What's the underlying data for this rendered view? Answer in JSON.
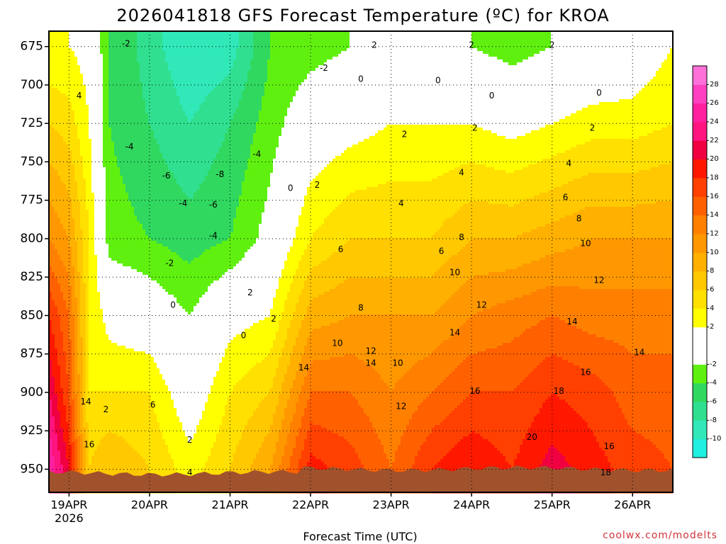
{
  "chart_data": {
    "type": "heatmap",
    "title": "2026041818 GFS Forecast Temperature (ºC) for KROA",
    "xlabel": "Forecast Time (UTC)",
    "ylabel": "",
    "credit": "coolwx.com/modelts",
    "x_range_hours": [
      0,
      186
    ],
    "y_range_hPa": [
      665,
      965
    ],
    "y_ticks": [
      675,
      700,
      725,
      750,
      775,
      800,
      825,
      850,
      875,
      900,
      925,
      950
    ],
    "x_ticks": [
      {
        "hour": 6,
        "label": "19APR",
        "sub": "2026"
      },
      {
        "hour": 30,
        "label": "20APR"
      },
      {
        "hour": 54,
        "label": "21APR"
      },
      {
        "hour": 78,
        "label": "22APR"
      },
      {
        "hour": 102,
        "label": "23APR"
      },
      {
        "hour": 126,
        "label": "24APR"
      },
      {
        "hour": 150,
        "label": "25APR"
      },
      {
        "hour": 174,
        "label": "26APR"
      }
    ],
    "colorbar": {
      "labels": [
        28,
        26,
        24,
        22,
        20,
        18,
        16,
        14,
        12,
        10,
        8,
        6,
        4,
        2,
        -2,
        -4,
        -6,
        -8,
        -10
      ],
      "bands": [
        {
          "min": -12,
          "max": -10,
          "color": "#20f0e0"
        },
        {
          "min": -10,
          "max": -8,
          "color": "#30e8b8"
        },
        {
          "min": -8,
          "max": -6,
          "color": "#30e090"
        },
        {
          "min": -6,
          "max": -4,
          "color": "#30d860"
        },
        {
          "min": -4,
          "max": -2,
          "color": "#60f010"
        },
        {
          "min": -2,
          "max": 2,
          "color": "#ffffff"
        },
        {
          "min": 2,
          "max": 4,
          "color": "#ffff00"
        },
        {
          "min": 4,
          "max": 6,
          "color": "#ffe000"
        },
        {
          "min": 6,
          "max": 8,
          "color": "#ffc800"
        },
        {
          "min": 8,
          "max": 10,
          "color": "#ffb000"
        },
        {
          "min": 10,
          "max": 12,
          "color": "#ff9800"
        },
        {
          "min": 12,
          "max": 14,
          "color": "#ff8000"
        },
        {
          "min": 14,
          "max": 16,
          "color": "#ff6000"
        },
        {
          "min": 16,
          "max": 18,
          "color": "#ff4000"
        },
        {
          "min": 18,
          "max": 20,
          "color": "#ff1800"
        },
        {
          "min": 20,
          "max": 22,
          "color": "#f00040"
        },
        {
          "min": 22,
          "max": 24,
          "color": "#ff1480"
        },
        {
          "min": 24,
          "max": 26,
          "color": "#ff20a0"
        },
        {
          "min": 26,
          "max": 28,
          "color": "#ff40c0"
        },
        {
          "min": 28,
          "max": 30,
          "color": "#ff70d8"
        }
      ]
    },
    "terrain_color": "#a0522d",
    "profiles": [
      {
        "hour": 0,
        "levels": [
          {
            "p": 675,
            "t": 2
          },
          {
            "p": 725,
            "t": 6
          },
          {
            "p": 800,
            "t": 12
          },
          {
            "p": 850,
            "t": 18
          },
          {
            "p": 900,
            "t": 22
          },
          {
            "p": 950,
            "t": 26
          }
        ]
      },
      {
        "hour": 6,
        "levels": [
          {
            "p": 675,
            "t": 2
          },
          {
            "p": 725,
            "t": 5
          },
          {
            "p": 800,
            "t": 10
          },
          {
            "p": 850,
            "t": 14
          },
          {
            "p": 900,
            "t": 16
          },
          {
            "p": 950,
            "t": 20
          }
        ]
      },
      {
        "hour": 12,
        "levels": [
          {
            "p": 675,
            "t": 1
          },
          {
            "p": 725,
            "t": 2
          },
          {
            "p": 800,
            "t": 4
          },
          {
            "p": 850,
            "t": 4
          },
          {
            "p": 900,
            "t": 4
          },
          {
            "p": 950,
            "t": 6
          }
        ]
      },
      {
        "hour": 18,
        "levels": [
          {
            "p": 675,
            "t": -4
          },
          {
            "p": 725,
            "t": -4
          },
          {
            "p": 800,
            "t": -3
          },
          {
            "p": 850,
            "t": 1
          },
          {
            "p": 900,
            "t": 4
          },
          {
            "p": 950,
            "t": 8
          }
        ]
      },
      {
        "hour": 30,
        "levels": [
          {
            "p": 675,
            "t": -7
          },
          {
            "p": 725,
            "t": -6
          },
          {
            "p": 800,
            "t": -4
          },
          {
            "p": 850,
            "t": 0
          },
          {
            "p": 900,
            "t": 4
          },
          {
            "p": 950,
            "t": 6
          }
        ]
      },
      {
        "hour": 42,
        "levels": [
          {
            "p": 675,
            "t": -10
          },
          {
            "p": 725,
            "t": -8
          },
          {
            "p": 800,
            "t": -5
          },
          {
            "p": 850,
            "t": -2
          },
          {
            "p": 900,
            "t": 0
          },
          {
            "p": 950,
            "t": 3
          }
        ]
      },
      {
        "hour": 54,
        "levels": [
          {
            "p": 675,
            "t": -9
          },
          {
            "p": 725,
            "t": -6
          },
          {
            "p": 800,
            "t": -4
          },
          {
            "p": 850,
            "t": 1
          },
          {
            "p": 900,
            "t": 4
          },
          {
            "p": 950,
            "t": 6
          }
        ]
      },
      {
        "hour": 66,
        "levels": [
          {
            "p": 675,
            "t": -4
          },
          {
            "p": 725,
            "t": -3
          },
          {
            "p": 800,
            "t": -1
          },
          {
            "p": 850,
            "t": 2
          },
          {
            "p": 900,
            "t": 6
          },
          {
            "p": 950,
            "t": 10
          }
        ]
      },
      {
        "hour": 78,
        "levels": [
          {
            "p": 675,
            "t": -3
          },
          {
            "p": 725,
            "t": 0
          },
          {
            "p": 800,
            "t": 4
          },
          {
            "p": 850,
            "t": 9
          },
          {
            "p": 900,
            "t": 14
          },
          {
            "p": 950,
            "t": 19
          }
        ]
      },
      {
        "hour": 90,
        "levels": [
          {
            "p": 675,
            "t": -2
          },
          {
            "p": 725,
            "t": 1
          },
          {
            "p": 800,
            "t": 6
          },
          {
            "p": 850,
            "t": 10
          },
          {
            "p": 900,
            "t": 14
          },
          {
            "p": 950,
            "t": 17
          }
        ]
      },
      {
        "hour": 102,
        "levels": [
          {
            "p": 675,
            "t": -1
          },
          {
            "p": 725,
            "t": 2
          },
          {
            "p": 800,
            "t": 6
          },
          {
            "p": 850,
            "t": 10
          },
          {
            "p": 900,
            "t": 12
          },
          {
            "p": 950,
            "t": 14
          }
        ]
      },
      {
        "hour": 114,
        "levels": [
          {
            "p": 675,
            "t": 0
          },
          {
            "p": 725,
            "t": 2
          },
          {
            "p": 800,
            "t": 6
          },
          {
            "p": 850,
            "t": 10
          },
          {
            "p": 900,
            "t": 14
          },
          {
            "p": 950,
            "t": 18
          }
        ]
      },
      {
        "hour": 126,
        "levels": [
          {
            "p": 675,
            "t": -2
          },
          {
            "p": 725,
            "t": 2
          },
          {
            "p": 800,
            "t": 8
          },
          {
            "p": 850,
            "t": 12
          },
          {
            "p": 900,
            "t": 16
          },
          {
            "p": 950,
            "t": 20
          }
        ]
      },
      {
        "hour": 138,
        "levels": [
          {
            "p": 675,
            "t": -3
          },
          {
            "p": 725,
            "t": 1
          },
          {
            "p": 800,
            "t": 8
          },
          {
            "p": 850,
            "t": 13
          },
          {
            "p": 900,
            "t": 16
          },
          {
            "p": 950,
            "t": 18
          }
        ]
      },
      {
        "hour": 150,
        "levels": [
          {
            "p": 675,
            "t": -2
          },
          {
            "p": 725,
            "t": 2
          },
          {
            "p": 800,
            "t": 9
          },
          {
            "p": 850,
            "t": 14
          },
          {
            "p": 900,
            "t": 18
          },
          {
            "p": 950,
            "t": 21
          }
        ]
      },
      {
        "hour": 162,
        "levels": [
          {
            "p": 675,
            "t": -1
          },
          {
            "p": 725,
            "t": 3
          },
          {
            "p": 800,
            "t": 10
          },
          {
            "p": 850,
            "t": 13
          },
          {
            "p": 900,
            "t": 17
          },
          {
            "p": 950,
            "t": 19
          }
        ]
      },
      {
        "hour": 174,
        "levels": [
          {
            "p": 675,
            "t": 0
          },
          {
            "p": 725,
            "t": 3
          },
          {
            "p": 800,
            "t": 10
          },
          {
            "p": 850,
            "t": 13
          },
          {
            "p": 900,
            "t": 15
          },
          {
            "p": 950,
            "t": 17
          }
        ]
      },
      {
        "hour": 186,
        "levels": [
          {
            "p": 675,
            "t": 2
          },
          {
            "p": 725,
            "t": 4
          },
          {
            "p": 800,
            "t": 10
          },
          {
            "p": 850,
            "t": 13
          },
          {
            "p": 900,
            "t": 15
          },
          {
            "p": 950,
            "t": 16
          }
        ]
      }
    ],
    "contour_labels": [
      {
        "text": "4",
        "hour": 9,
        "p": 707
      },
      {
        "text": "14",
        "hour": 11,
        "p": 906
      },
      {
        "text": "16",
        "hour": 12,
        "p": 934
      },
      {
        "text": "2",
        "hour": 17,
        "p": 911
      },
      {
        "text": "-2",
        "hour": 23,
        "p": 673
      },
      {
        "text": "-4",
        "hour": 24,
        "p": 740
      },
      {
        "text": "-6",
        "hour": 35,
        "p": 759
      },
      {
        "text": "-4",
        "hour": 40,
        "p": 777
      },
      {
        "text": "-2",
        "hour": 36,
        "p": 816
      },
      {
        "text": "0",
        "hour": 37,
        "p": 843
      },
      {
        "text": "6",
        "hour": 31,
        "p": 908
      },
      {
        "text": "2",
        "hour": 42,
        "p": 931
      },
      {
        "text": "4",
        "hour": 42,
        "p": 952
      },
      {
        "text": "-8",
        "hour": 51,
        "p": 758
      },
      {
        "text": "-6",
        "hour": 49,
        "p": 778
      },
      {
        "text": "-4",
        "hour": 49,
        "p": 798
      },
      {
        "text": "-4",
        "hour": 62,
        "p": 745
      },
      {
        "text": "2",
        "hour": 60,
        "p": 835
      },
      {
        "text": "0",
        "hour": 58,
        "p": 863
      },
      {
        "text": "2",
        "hour": 67,
        "p": 852
      },
      {
        "text": "0",
        "hour": 72,
        "p": 767
      },
      {
        "text": "2",
        "hour": 80,
        "p": 765
      },
      {
        "text": "-2",
        "hour": 82,
        "p": 689
      },
      {
        "text": "0",
        "hour": 93,
        "p": 696
      },
      {
        "text": "2",
        "hour": 97,
        "p": 674
      },
      {
        "text": "6",
        "hour": 87,
        "p": 807
      },
      {
        "text": "8",
        "hour": 93,
        "p": 845
      },
      {
        "text": "10",
        "hour": 86,
        "p": 868
      },
      {
        "text": "12",
        "hour": 96,
        "p": 873
      },
      {
        "text": "14",
        "hour": 76,
        "p": 884
      },
      {
        "text": "14",
        "hour": 96,
        "p": 881
      },
      {
        "text": "10",
        "hour": 104,
        "p": 881
      },
      {
        "text": "12",
        "hour": 105,
        "p": 909
      },
      {
        "text": "2",
        "hour": 106,
        "p": 732
      },
      {
        "text": "4",
        "hour": 105,
        "p": 777
      },
      {
        "text": "0",
        "hour": 116,
        "p": 697
      },
      {
        "text": "6",
        "hour": 117,
        "p": 808
      },
      {
        "text": "4",
        "hour": 123,
        "p": 757
      },
      {
        "text": "8",
        "hour": 123,
        "p": 799
      },
      {
        "text": "10",
        "hour": 121,
        "p": 822
      },
      {
        "text": "12",
        "hour": 129,
        "p": 843
      },
      {
        "text": "14",
        "hour": 121,
        "p": 861
      },
      {
        "text": "16",
        "hour": 127,
        "p": 899
      },
      {
        "text": "2",
        "hour": 126,
        "p": 674
      },
      {
        "text": "2",
        "hour": 127,
        "p": 728
      },
      {
        "text": "0",
        "hour": 132,
        "p": 707
      },
      {
        "text": "20",
        "hour": 144,
        "p": 929
      },
      {
        "text": "18",
        "hour": 152,
        "p": 899
      },
      {
        "text": "16",
        "hour": 160,
        "p": 887
      },
      {
        "text": "14",
        "hour": 156,
        "p": 854
      },
      {
        "text": "12",
        "hour": 164,
        "p": 827
      },
      {
        "text": "10",
        "hour": 160,
        "p": 803
      },
      {
        "text": "8",
        "hour": 158,
        "p": 787
      },
      {
        "text": "6",
        "hour": 154,
        "p": 773
      },
      {
        "text": "4",
        "hour": 155,
        "p": 751
      },
      {
        "text": "2",
        "hour": 162,
        "p": 728
      },
      {
        "text": "0",
        "hour": 164,
        "p": 705
      },
      {
        "text": "2",
        "hour": 150,
        "p": 674
      },
      {
        "text": "14",
        "hour": 176,
        "p": 874
      },
      {
        "text": "16",
        "hour": 167,
        "p": 935
      },
      {
        "text": "18",
        "hour": 166,
        "p": 952
      }
    ]
  }
}
